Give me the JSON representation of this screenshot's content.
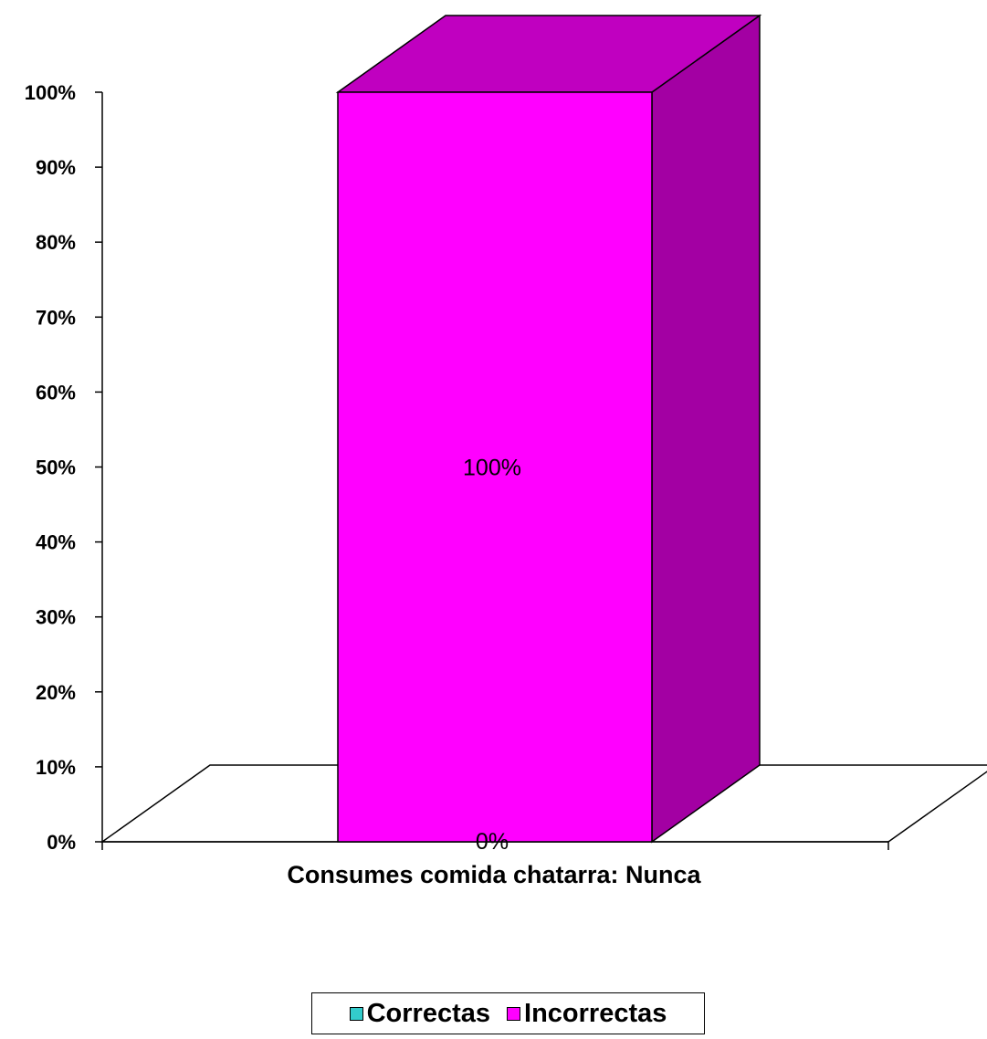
{
  "chart_data": {
    "type": "bar",
    "stacked": true,
    "three_d": true,
    "categories": [
      "Consumes comida chatarra: Nunca"
    ],
    "series": [
      {
        "name": "Correctas",
        "values": [
          0
        ],
        "color": "#33CCCC",
        "data_label": "0%"
      },
      {
        "name": "Incorrectas",
        "values": [
          100
        ],
        "color": "#FF00FF",
        "data_label": "100%"
      }
    ],
    "ylim": [
      0,
      100
    ],
    "y_ticks": [
      "0%",
      "10%",
      "20%",
      "30%",
      "40%",
      "50%",
      "60%",
      "70%",
      "80%",
      "90%",
      "100%"
    ],
    "y_tick_values": [
      0,
      10,
      20,
      30,
      40,
      50,
      60,
      70,
      80,
      90,
      100
    ],
    "grid": false,
    "legend_position": "bottom",
    "title": "",
    "xlabel": "",
    "ylabel": ""
  }
}
